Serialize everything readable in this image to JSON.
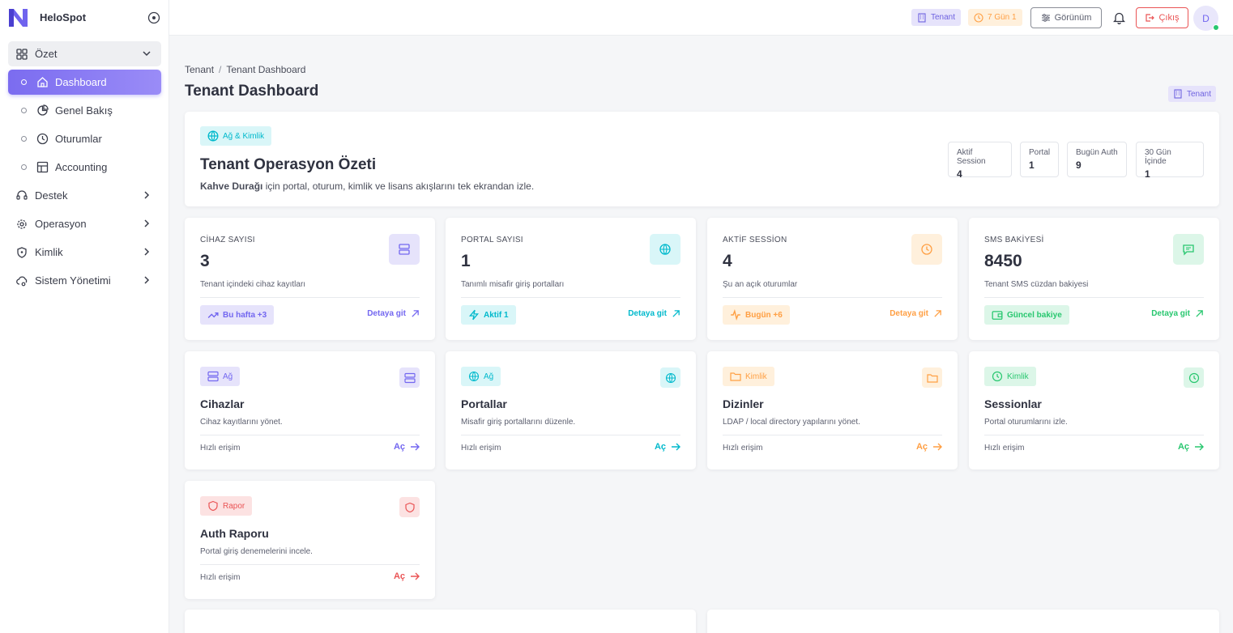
{
  "app": {
    "name": "HeloSpot"
  },
  "sidebar": {
    "overview_label": "Özet",
    "sub_items": [
      {
        "label": "Dashboard",
        "icon": "home-icon",
        "active": true
      },
      {
        "label": "Genel Bakış",
        "icon": "pie-chart-icon",
        "active": false
      },
      {
        "label": "Oturumlar",
        "icon": "clock-icon",
        "active": false
      },
      {
        "label": "Accounting",
        "icon": "table-icon",
        "active": false
      }
    ],
    "groups": [
      {
        "label": "Destek",
        "icon": "headset-icon"
      },
      {
        "label": "Operasyon",
        "icon": "settings-icon"
      },
      {
        "label": "Kimlik",
        "icon": "shield-icon"
      },
      {
        "label": "Sistem Yönetimi",
        "icon": "cloud-settings-icon"
      }
    ]
  },
  "topbar": {
    "tenant": "Tenant",
    "trial": "7 Gün 1",
    "view": "Görünüm",
    "exit": "Çıkış",
    "avatar": "D"
  },
  "breadcrumb": {
    "root": "Tenant",
    "sep": "/",
    "current": "Tenant Dashboard"
  },
  "page": {
    "title": "Tenant Dashboard",
    "tag": "Tenant"
  },
  "hero": {
    "tag": "Ağ & Kimlik",
    "title": "Tenant Operasyon Özeti",
    "desc_strong": "Kahve Durağı",
    "desc_rest": " için portal, oturum, kimlik ve lisans akışlarını tek ekrandan izle.",
    "stats": [
      {
        "label": "Aktif Session",
        "value": "4"
      },
      {
        "label": "Portal",
        "value": "1"
      },
      {
        "label": "Bugün Auth",
        "value": "9"
      },
      {
        "label": "30 Gün İçinde",
        "value": "1"
      }
    ]
  },
  "stats": [
    {
      "label": "CİHAZ SAYISI",
      "value": "3",
      "desc": "Tenant içindeki cihaz kayıtları",
      "badge": "Bu hafta +3",
      "link": "Detaya git",
      "color": "#7367f0"
    },
    {
      "label": "PORTAL SAYISI",
      "value": "1",
      "desc": "Tanımlı misafir giriş portalları",
      "badge": "Aktif 1",
      "link": "Detaya git",
      "color": "#00b9cc"
    },
    {
      "label": "AKTİF SESSİON",
      "value": "4",
      "desc": "Şu an açık oturumlar",
      "badge": "Bugün +6",
      "link": "Detaya git",
      "color": "#ff9f43"
    },
    {
      "label": "SMS BAKİYESİ",
      "value": "8450",
      "desc": "Tenant SMS cüzdan bakiyesi",
      "badge": "Güncel bakiye",
      "link": "Detaya git",
      "color": "#28c76f"
    }
  ],
  "actions": [
    {
      "tag": "Ağ",
      "title": "Cihazlar",
      "desc": "Cihaz kayıtlarını yönet.",
      "quick": "Hızlı erişim",
      "open": "Aç",
      "color": "#7367f0"
    },
    {
      "tag": "Ağ",
      "title": "Portallar",
      "desc": "Misafir giriş portallarını düzenle.",
      "quick": "Hızlı erişim",
      "open": "Aç",
      "color": "#00b9cc"
    },
    {
      "tag": "Kimlik",
      "title": "Dizinler",
      "desc": "LDAP / local directory yapılarını yönet.",
      "quick": "Hızlı erişim",
      "open": "Aç",
      "color": "#ff9f43"
    },
    {
      "tag": "Kimlik",
      "title": "Sessionlar",
      "desc": "Portal oturumlarını izle.",
      "quick": "Hızlı erişim",
      "open": "Aç",
      "color": "#28c76f"
    },
    {
      "tag": "Rapor",
      "title": "Auth Raporu",
      "desc": "Portal giriş denemelerini incele.",
      "quick": "Hızlı erişim",
      "open": "Aç",
      "color": "#ea5455"
    }
  ],
  "bottom_panels": [
    {
      "title": ""
    },
    {
      "title": ""
    }
  ]
}
